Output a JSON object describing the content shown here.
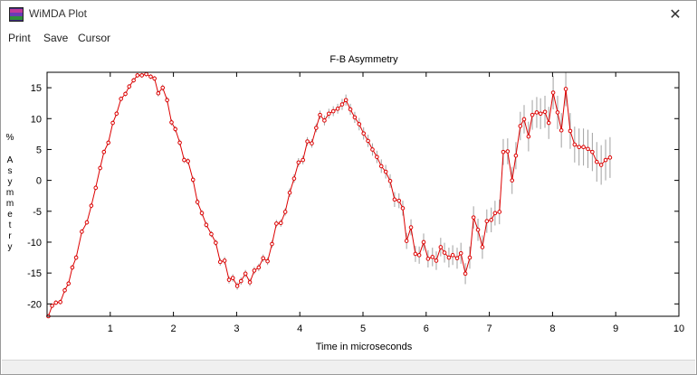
{
  "window": {
    "title": "WiMDA Plot",
    "close_glyph": "✕",
    "icon": "wimda-app-icon"
  },
  "menu": {
    "items": [
      "Print",
      "Save",
      "Cursor"
    ]
  },
  "colors": {
    "series": "#dd0000",
    "errorbars": "#a0a0a0",
    "axes": "#000000"
  },
  "chart_data": {
    "type": "scatter",
    "title": "F-B Asymmetry",
    "xlabel": "Time in microseconds",
    "ylabel": "% Asymmetry",
    "xlim": [
      0.0,
      10.0
    ],
    "ylim": [
      -22,
      17.5
    ],
    "xticks": [
      1,
      2,
      3,
      4,
      5,
      6,
      7,
      8,
      9,
      10
    ],
    "yticks": [
      -20,
      -15,
      -10,
      -5,
      0,
      5,
      10,
      15
    ],
    "grid": false,
    "legend": "none",
    "series": [
      {
        "connected": true,
        "markers": "open-circle",
        "points": [
          [
            0.02,
            -22.0,
            0.4
          ],
          [
            0.08,
            -20.3,
            0.4
          ],
          [
            0.14,
            -19.8,
            0.4
          ],
          [
            0.21,
            -19.7,
            0.4
          ],
          [
            0.28,
            -17.8,
            0.4
          ],
          [
            0.34,
            -16.7,
            0.4
          ],
          [
            0.4,
            -14.1,
            0.4
          ],
          [
            0.46,
            -12.5,
            0.4
          ],
          [
            0.55,
            -8.3,
            0.4
          ],
          [
            0.63,
            -6.8,
            0.4
          ],
          [
            0.7,
            -4.1,
            0.4
          ],
          [
            0.77,
            -1.2,
            0.4
          ],
          [
            0.84,
            2.0,
            0.4
          ],
          [
            0.9,
            4.6,
            0.4
          ],
          [
            0.97,
            6.1,
            0.4
          ],
          [
            1.04,
            9.3,
            0.4
          ],
          [
            1.1,
            10.8,
            0.4
          ],
          [
            1.17,
            13.2,
            0.4
          ],
          [
            1.24,
            14.0,
            0.4
          ],
          [
            1.3,
            15.2,
            0.4
          ],
          [
            1.37,
            16.2,
            0.4
          ],
          [
            1.43,
            17.0,
            0.4
          ],
          [
            1.5,
            17.0,
            0.4
          ],
          [
            1.57,
            17.2,
            0.4
          ],
          [
            1.64,
            16.8,
            0.4
          ],
          [
            1.7,
            16.5,
            0.4
          ],
          [
            1.76,
            14.1,
            0.5
          ],
          [
            1.83,
            15.0,
            0.5
          ],
          [
            1.9,
            13.0,
            0.5
          ],
          [
            1.97,
            9.4,
            0.5
          ],
          [
            2.03,
            8.3,
            0.5
          ],
          [
            2.1,
            6.1,
            0.5
          ],
          [
            2.17,
            3.3,
            0.5
          ],
          [
            2.23,
            3.1,
            0.5
          ],
          [
            2.31,
            0.1,
            0.5
          ],
          [
            2.38,
            -3.5,
            0.5
          ],
          [
            2.45,
            -5.3,
            0.5
          ],
          [
            2.52,
            -7.2,
            0.5
          ],
          [
            2.6,
            -8.7,
            0.5
          ],
          [
            2.67,
            -10.1,
            0.5
          ],
          [
            2.74,
            -13.2,
            0.6
          ],
          [
            2.81,
            -13.0,
            0.6
          ],
          [
            2.88,
            -16.1,
            0.6
          ],
          [
            2.94,
            -15.8,
            0.6
          ],
          [
            3.01,
            -17.1,
            0.6
          ],
          [
            3.07,
            -16.3,
            0.6
          ],
          [
            3.14,
            -15.1,
            0.6
          ],
          [
            3.21,
            -16.5,
            0.6
          ],
          [
            3.28,
            -14.6,
            0.6
          ],
          [
            3.35,
            -14.1,
            0.6
          ],
          [
            3.42,
            -12.6,
            0.6
          ],
          [
            3.49,
            -13.1,
            0.6
          ],
          [
            3.56,
            -10.3,
            0.6
          ],
          [
            3.63,
            -7.0,
            0.6
          ],
          [
            3.7,
            -6.9,
            0.6
          ],
          [
            3.77,
            -5.1,
            0.6
          ],
          [
            3.84,
            -2.0,
            0.7
          ],
          [
            3.91,
            0.3,
            0.7
          ],
          [
            3.98,
            2.9,
            0.7
          ],
          [
            4.05,
            3.3,
            0.7
          ],
          [
            4.12,
            6.3,
            0.7
          ],
          [
            4.19,
            6.0,
            0.7
          ],
          [
            4.26,
            8.5,
            0.7
          ],
          [
            4.32,
            10.6,
            0.7
          ],
          [
            4.39,
            9.7,
            0.8
          ],
          [
            4.46,
            10.8,
            0.8
          ],
          [
            4.53,
            11.2,
            0.8
          ],
          [
            4.6,
            11.6,
            0.8
          ],
          [
            4.67,
            12.3,
            0.9
          ],
          [
            4.73,
            13.0,
            0.9
          ],
          [
            4.8,
            11.5,
            0.9
          ],
          [
            4.87,
            10.2,
            0.9
          ],
          [
            4.94,
            9.1,
            1.0
          ],
          [
            5.01,
            7.6,
            1.0
          ],
          [
            5.08,
            6.4,
            1.0
          ],
          [
            5.15,
            5.0,
            1.0
          ],
          [
            5.22,
            3.8,
            1.0
          ],
          [
            5.29,
            2.3,
            1.1
          ],
          [
            5.36,
            1.4,
            1.1
          ],
          [
            5.43,
            -0.1,
            1.1
          ],
          [
            5.5,
            -3.1,
            1.2
          ],
          [
            5.57,
            -3.3,
            1.2
          ],
          [
            5.63,
            -4.5,
            1.2
          ],
          [
            5.69,
            -9.8,
            1.3
          ],
          [
            5.76,
            -7.6,
            1.3
          ],
          [
            5.83,
            -11.9,
            1.3
          ],
          [
            5.89,
            -12.1,
            1.4
          ],
          [
            5.96,
            -10.0,
            1.4
          ],
          [
            6.03,
            -12.7,
            1.4
          ],
          [
            6.1,
            -12.4,
            1.5
          ],
          [
            6.16,
            -13.0,
            1.5
          ],
          [
            6.23,
            -10.8,
            1.5
          ],
          [
            6.29,
            -11.7,
            1.6
          ],
          [
            6.36,
            -12.5,
            1.6
          ],
          [
            6.42,
            -12.1,
            1.6
          ],
          [
            6.49,
            -12.6,
            1.7
          ],
          [
            6.55,
            -11.8,
            1.7
          ],
          [
            6.62,
            -15.1,
            1.7
          ],
          [
            6.69,
            -12.5,
            1.8
          ],
          [
            6.75,
            -6.0,
            1.8
          ],
          [
            6.82,
            -8.0,
            1.8
          ],
          [
            6.89,
            -10.8,
            1.9
          ],
          [
            6.96,
            -6.6,
            1.9
          ],
          [
            7.03,
            -6.4,
            2.0
          ],
          [
            7.09,
            -5.3,
            2.0
          ],
          [
            7.16,
            -5.1,
            2.0
          ],
          [
            7.22,
            4.6,
            2.1
          ],
          [
            7.29,
            4.7,
            2.1
          ],
          [
            7.36,
            0.0,
            2.2
          ],
          [
            7.42,
            4.0,
            2.2
          ],
          [
            7.49,
            8.8,
            2.3
          ],
          [
            7.55,
            9.9,
            2.3
          ],
          [
            7.62,
            7.1,
            2.4
          ],
          [
            7.68,
            10.6,
            2.4
          ],
          [
            7.75,
            11.0,
            2.5
          ],
          [
            7.81,
            10.8,
            2.5
          ],
          [
            7.88,
            11.1,
            2.6
          ],
          [
            7.94,
            9.3,
            2.6
          ],
          [
            8.01,
            14.2,
            2.7
          ],
          [
            8.08,
            11.0,
            2.7
          ],
          [
            8.14,
            8.1,
            2.8
          ],
          [
            8.21,
            14.8,
            2.8
          ],
          [
            8.28,
            8.0,
            2.9
          ],
          [
            8.35,
            5.8,
            2.9
          ],
          [
            8.42,
            5.4,
            3.0
          ],
          [
            8.49,
            5.4,
            3.0
          ],
          [
            8.56,
            5.1,
            3.1
          ],
          [
            8.63,
            4.6,
            3.1
          ],
          [
            8.7,
            3.0,
            3.2
          ],
          [
            8.77,
            2.5,
            3.2
          ],
          [
            8.84,
            3.3,
            3.3
          ],
          [
            8.91,
            3.7,
            3.3
          ]
        ]
      }
    ]
  }
}
